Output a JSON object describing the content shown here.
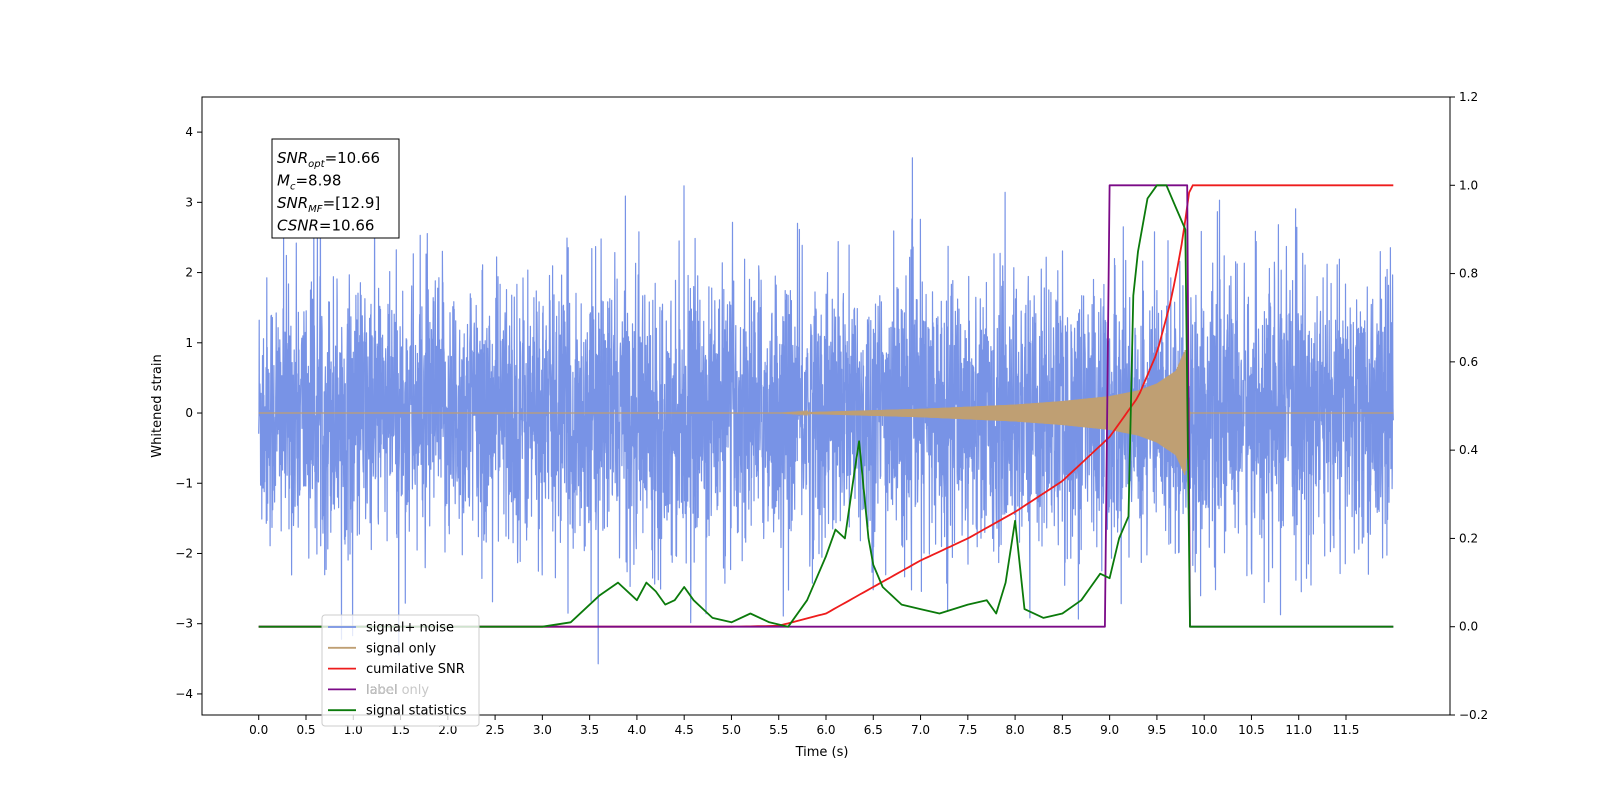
{
  "chart_data": {
    "type": "line",
    "title": "",
    "xlabel": "Time (s)",
    "ylabel": "Whitened strain",
    "xlim": [
      -0.6,
      12.6
    ],
    "ylim": [
      -4.3,
      4.5
    ],
    "y2lim": [
      -0.2,
      1.2
    ],
    "x_ticks": [
      "0.0",
      "0.5",
      "1.0",
      "1.5",
      "2.0",
      "2.5",
      "3.0",
      "3.5",
      "4.0",
      "4.5",
      "5.0",
      "5.5",
      "6.0",
      "6.5",
      "7.0",
      "7.5",
      "8.0",
      "8.5",
      "9.0",
      "9.5",
      "10.0",
      "10.5",
      "11.0",
      "11.5"
    ],
    "y_ticks": [
      "4",
      "3",
      "2",
      "1",
      "0",
      "−1",
      "−2",
      "−3",
      "−4"
    ],
    "y2_ticks": [
      "1.2",
      "1.0",
      "0.8",
      "0.6",
      "0.4",
      "0.2",
      "0.0",
      "−0.2"
    ],
    "grid": false,
    "legend_position": "lower-left",
    "colors": {
      "signal_noise": "#7893e6",
      "signal_only": "#bf9f73",
      "cumulative_snr": "#ee1c1c",
      "label": "#7b0a87",
      "signal_statistics": "#0b7a0b"
    },
    "annotation": {
      "lines": [
        {
          "base": "SNR",
          "sub": "opt",
          "value": "=10.66"
        },
        {
          "base": "M",
          "sub": "c",
          "value": "=8.98"
        },
        {
          "base": "SNR",
          "sub": "MF",
          "value": "=[12.9]"
        },
        {
          "base": "CSNR",
          "sub": "",
          "value": "=10.66"
        }
      ]
    },
    "legend": {
      "entries": [
        "signal+ noise",
        "signal only",
        "cumilative SNR",
        "label",
        "label only",
        "signal statistics"
      ],
      "visible_note": "entry 'label only' is partially hidden behind 'label' text"
    },
    "series": [
      {
        "name": "signal+ noise",
        "axis": "left",
        "description_envelope": {
          "x_start": 0.0,
          "x_end": 12.0,
          "typical_min": -2.5,
          "typical_max": 2.5,
          "peak_max": 4.1,
          "peak_min": -3.8
        }
      },
      {
        "name": "signal only",
        "axis": "left",
        "envelope": {
          "x": [
            0.0,
            5.5,
            6.0,
            7.0,
            8.0,
            8.5,
            9.0,
            9.3,
            9.5,
            9.7,
            9.8,
            9.85,
            12.0
          ],
          "amplitude": [
            0.0,
            0.0,
            0.02,
            0.06,
            0.12,
            0.17,
            0.24,
            0.32,
            0.42,
            0.6,
            0.9,
            0.0,
            0.0
          ]
        }
      },
      {
        "name": "cumilative SNR",
        "axis": "right",
        "x": [
          0.0,
          5.0,
          5.5,
          6.0,
          6.5,
          7.0,
          7.5,
          8.0,
          8.5,
          9.0,
          9.3,
          9.5,
          9.65,
          9.75,
          9.82,
          9.85,
          12.0
        ],
        "y": [
          0.0,
          0.0,
          0.002,
          0.03,
          0.09,
          0.15,
          0.2,
          0.26,
          0.33,
          0.43,
          0.52,
          0.62,
          0.74,
          0.85,
          0.95,
          1.0,
          1.0
        ]
      },
      {
        "name": "label",
        "axis": "right",
        "x": [
          0.0,
          8.95,
          9.0,
          9.82,
          9.85,
          12.0
        ],
        "y": [
          0.0,
          0.0,
          1.0,
          1.0,
          0.0,
          0.0
        ]
      },
      {
        "name": "signal statistics",
        "axis": "right",
        "x": [
          0.0,
          3.0,
          3.3,
          3.6,
          3.8,
          4.0,
          4.1,
          4.2,
          4.3,
          4.4,
          4.5,
          4.6,
          4.7,
          4.8,
          5.0,
          5.2,
          5.4,
          5.6,
          5.8,
          6.0,
          6.1,
          6.2,
          6.3,
          6.35,
          6.45,
          6.5,
          6.6,
          6.8,
          7.0,
          7.2,
          7.5,
          7.7,
          7.8,
          7.9,
          8.0,
          8.1,
          8.3,
          8.5,
          8.7,
          8.8,
          8.9,
          9.0,
          9.1,
          9.2,
          9.25,
          9.3,
          9.4,
          9.5,
          9.6,
          9.7,
          9.8,
          9.85,
          12.0
        ],
        "y": [
          0.0,
          0.0,
          0.01,
          0.07,
          0.1,
          0.06,
          0.1,
          0.08,
          0.05,
          0.06,
          0.09,
          0.06,
          0.04,
          0.02,
          0.01,
          0.03,
          0.01,
          0.0,
          0.06,
          0.16,
          0.22,
          0.2,
          0.35,
          0.42,
          0.2,
          0.14,
          0.09,
          0.05,
          0.04,
          0.03,
          0.05,
          0.06,
          0.03,
          0.1,
          0.24,
          0.04,
          0.02,
          0.03,
          0.06,
          0.09,
          0.12,
          0.11,
          0.2,
          0.25,
          0.75,
          0.85,
          0.97,
          1.0,
          1.0,
          0.95,
          0.9,
          0.0,
          0.0
        ]
      }
    ]
  }
}
